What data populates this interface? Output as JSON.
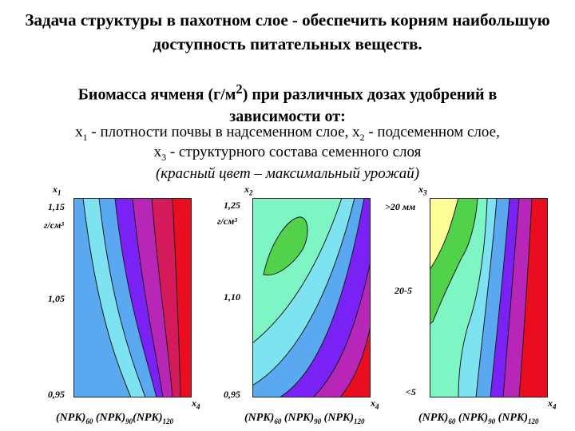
{
  "header": {
    "title": "Задача структуры в пахотном слое - обеспечить корням наибольшую доступность питательных веществ.",
    "subtitle_pre": "Биомасса ячменя (г/м",
    "subtitle_sup": "2",
    "subtitle_post": ") при различных дозах удобрений в зависимости от:",
    "line1_a": "x",
    "line1_a_sub": "1",
    "line1_b": "  - плотности почвы в надсеменном слое, x",
    "line1_b_sub": "2",
    "line1_c": "  - подсеменном слое,",
    "line2_a": "x",
    "line2_a_sub": "3",
    "line2_b": " - структурного состава семенного слоя",
    "note": "(красный цвет – максимальный урожай)"
  },
  "colors": {
    "blue": "#5aa8f0",
    "cyan": "#7ee3f0",
    "mint": "#7ef5c4",
    "green": "#52d24a",
    "yellow": "#ffff99",
    "violet": "#7a22f5",
    "magenta": "#b826b8",
    "crimson": "#d41a5a",
    "red": "#ea0d20"
  },
  "panels": [
    {
      "ylabel": "x",
      "ylabel_sub": "1",
      "yticks": [
        "1,15",
        "г/см³",
        "1,05",
        "0,95"
      ],
      "xlabel": "x",
      "xlabel_sub": "4",
      "xticks": [
        "(NPK)",
        "60",
        "(NPK)",
        "90",
        "(NPK)",
        "120"
      ]
    },
    {
      "ylabel": "x",
      "ylabel_sub": "2",
      "yticks": [
        "1,25",
        "г/см³",
        "1,10",
        "0,95"
      ],
      "xlabel": "x",
      "xlabel_sub": "4",
      "xticks": [
        "(NPK)",
        "60",
        "(NPK)",
        "90",
        "(NPK)",
        "120"
      ]
    },
    {
      "ylabel": "x",
      "ylabel_sub": "3",
      "yticks": [
        ">20 мм",
        "20-5",
        "<5"
      ],
      "xlabel": "x",
      "xlabel_sub": "4",
      "xticks": [
        "(NPK)",
        "60",
        "(NPK)",
        "90",
        "(NPK)",
        "120"
      ]
    }
  ]
}
